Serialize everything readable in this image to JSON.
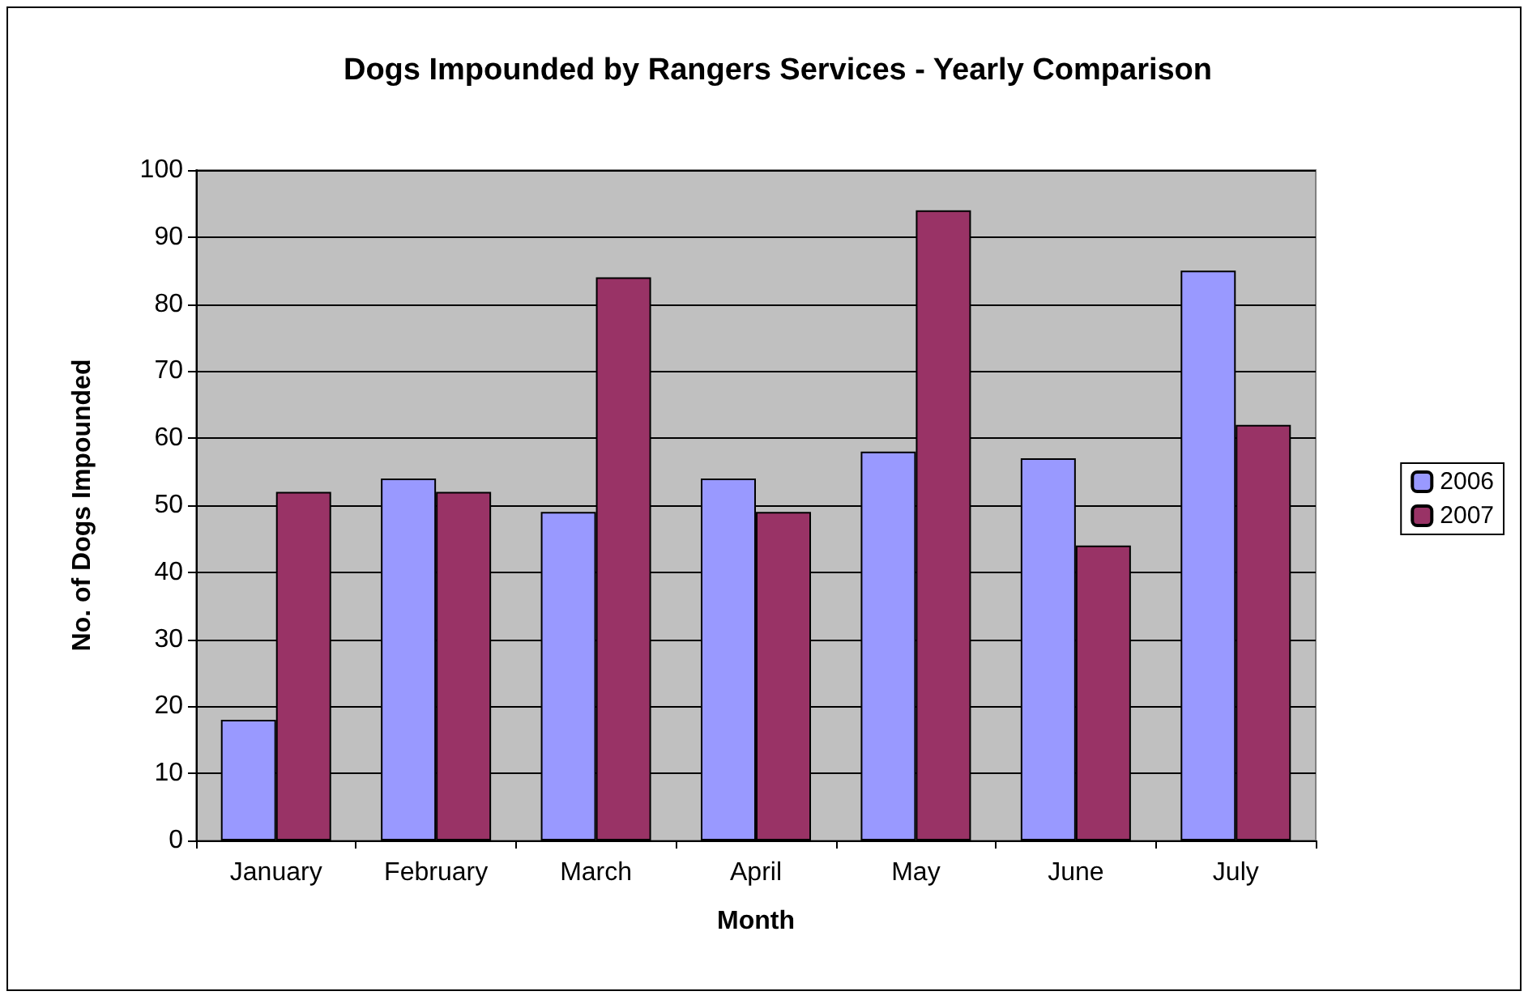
{
  "chart_data": {
    "type": "bar",
    "title": "Dogs Impounded by Rangers Services - Yearly Comparison",
    "xlabel": "Month",
    "ylabel": "No. of Dogs Impounded",
    "categories": [
      "January",
      "February",
      "March",
      "April",
      "May",
      "June",
      "July"
    ],
    "series": [
      {
        "name": "2006",
        "color": "#9999ff",
        "values": [
          18,
          54,
          49,
          54,
          58,
          57,
          85
        ]
      },
      {
        "name": "2007",
        "color": "#993366",
        "values": [
          52,
          52,
          84,
          49,
          94,
          44,
          62
        ]
      }
    ],
    "ylim": [
      0,
      100
    ],
    "yticks": [
      0,
      10,
      20,
      30,
      40,
      50,
      60,
      70,
      80,
      90,
      100
    ],
    "grid": "y",
    "legend": "right"
  }
}
